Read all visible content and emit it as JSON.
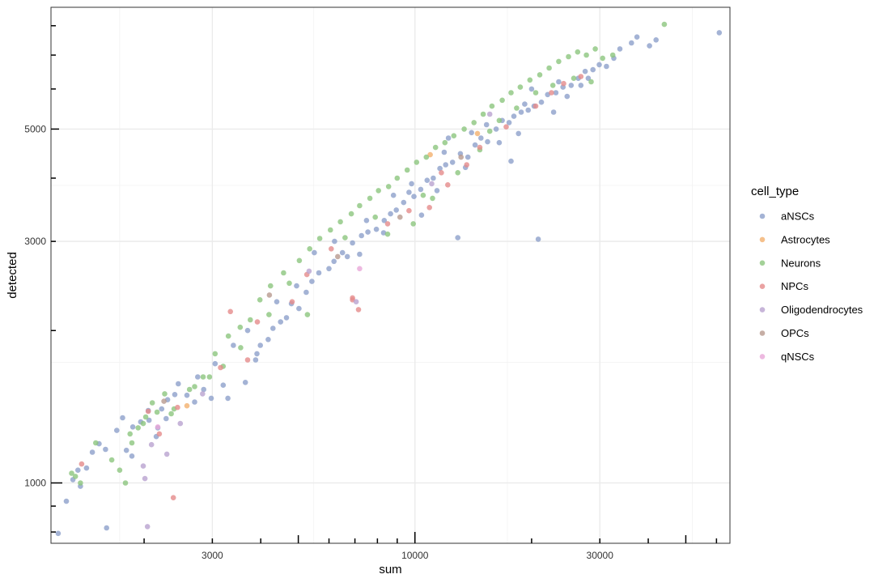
{
  "chart_data": {
    "type": "scatter",
    "xlabel": "sum",
    "ylabel": "detected",
    "x_scale": "log10",
    "y_scale": "log10",
    "xlim": [
      1150,
      65000
    ],
    "ylim": [
      760,
      8700
    ],
    "x_ticks": [
      {
        "value": 3000,
        "label": "3000"
      },
      {
        "value": 10000,
        "label": "10000"
      },
      {
        "value": 30000,
        "label": "30000"
      }
    ],
    "y_ticks": [
      {
        "value": 1000,
        "label": "1000"
      },
      {
        "value": 3000,
        "label": "3000"
      },
      {
        "value": 5000,
        "label": "5000"
      }
    ],
    "grid": true,
    "legend": {
      "title": "cell_type",
      "position": "right",
      "entries": [
        {
          "label": "aNSCs",
          "color": "#8DA0CB"
        },
        {
          "label": "Astrocytes",
          "color": "#F2B06E"
        },
        {
          "label": "Neurons",
          "color": "#8CC57E"
        },
        {
          "label": "NPCs",
          "color": "#E58B8B"
        },
        {
          "label": "Oligodendrocytes",
          "color": "#B9A2D0"
        },
        {
          "label": "OPCs",
          "color": "#B89A8E"
        },
        {
          "label": "qNSCs",
          "color": "#E8A8D8"
        }
      ]
    },
    "series": [
      {
        "name": "aNSCs",
        "points": [
          [
            1200,
            795
          ],
          [
            1260,
            920
          ],
          [
            1310,
            1015
          ],
          [
            1350,
            1060
          ],
          [
            1370,
            985
          ],
          [
            1420,
            1070
          ],
          [
            1470,
            1150
          ],
          [
            1530,
            1195
          ],
          [
            1590,
            1165
          ],
          [
            1600,
            815
          ],
          [
            1700,
            1270
          ],
          [
            1760,
            1345
          ],
          [
            1800,
            1160
          ],
          [
            1860,
            1130
          ],
          [
            1870,
            1290
          ],
          [
            1960,
            1320
          ],
          [
            2060,
            1330
          ],
          [
            2150,
            1235
          ],
          [
            2170,
            1285
          ],
          [
            2220,
            1400
          ],
          [
            2280,
            1340
          ],
          [
            2400,
            1495
          ],
          [
            2580,
            1490
          ],
          [
            2700,
            1445
          ],
          [
            2850,
            1530
          ],
          [
            2980,
            1470
          ],
          [
            3200,
            1560
          ],
          [
            3290,
            1470
          ],
          [
            3650,
            1580
          ],
          [
            3880,
            1750
          ],
          [
            3910,
            1800
          ],
          [
            3990,
            1870
          ],
          [
            4180,
            1920
          ],
          [
            4300,
            2020
          ],
          [
            4500,
            2080
          ],
          [
            4660,
            2120
          ],
          [
            4800,
            2260
          ],
          [
            5020,
            2210
          ],
          [
            5240,
            2380
          ],
          [
            5420,
            2500
          ],
          [
            5650,
            2600
          ],
          [
            6000,
            2650
          ],
          [
            6180,
            2740
          ],
          [
            6500,
            2850
          ],
          [
            6690,
            2800
          ],
          [
            6900,
            2980
          ],
          [
            7280,
            3080
          ],
          [
            7560,
            3130
          ],
          [
            7950,
            3170
          ],
          [
            8330,
            3300
          ],
          [
            8650,
            3400
          ],
          [
            8950,
            3460
          ],
          [
            9350,
            3580
          ],
          [
            9650,
            3750
          ],
          [
            9940,
            3680
          ],
          [
            10350,
            3800
          ],
          [
            10750,
            3960
          ],
          [
            11150,
            4000
          ],
          [
            11600,
            4180
          ],
          [
            12000,
            4250
          ],
          [
            12500,
            4300
          ],
          [
            13100,
            4470
          ],
          [
            13700,
            4400
          ],
          [
            14300,
            4650
          ],
          [
            14800,
            4800
          ],
          [
            15400,
            4720
          ],
          [
            16200,
            5000
          ],
          [
            16800,
            5200
          ],
          [
            17500,
            5150
          ],
          [
            18000,
            5300
          ],
          [
            18800,
            5400
          ],
          [
            19600,
            5450
          ],
          [
            20300,
            5550
          ],
          [
            21200,
            5650
          ],
          [
            22000,
            5850
          ],
          [
            23100,
            5900
          ],
          [
            24100,
            6050
          ],
          [
            25300,
            6100
          ],
          [
            26400,
            6300
          ],
          [
            27500,
            6500
          ],
          [
            28800,
            6550
          ],
          [
            29900,
            6700
          ],
          [
            31200,
            6650
          ],
          [
            32600,
            6900
          ],
          [
            33800,
            7200
          ],
          [
            36200,
            7400
          ],
          [
            37400,
            7600
          ],
          [
            40300,
            7300
          ],
          [
            41900,
            7500
          ],
          [
            61000,
            7750
          ],
          [
            12900,
            3050
          ],
          [
            20800,
            3030
          ],
          [
            17700,
            4320
          ],
          [
            11400,
            3780
          ],
          [
            10400,
            3380
          ],
          [
            8300,
            3120
          ],
          [
            7200,
            2830
          ],
          [
            15300,
            5100
          ],
          [
            14000,
            4920
          ],
          [
            20000,
            6000
          ],
          [
            23500,
            6200
          ],
          [
            26800,
            6100
          ],
          [
            18500,
            4900
          ],
          [
            22800,
            5400
          ],
          [
            9800,
            3900
          ],
          [
            11900,
            4500
          ],
          [
            13500,
            4200
          ],
          [
            16500,
            4700
          ],
          [
            19200,
            5600
          ],
          [
            24700,
            5800
          ],
          [
            28000,
            6300
          ],
          [
            12200,
            4800
          ],
          [
            8800,
            3700
          ],
          [
            7500,
            3300
          ],
          [
            6200,
            3000
          ],
          [
            5500,
            2850
          ],
          [
            4950,
            2450
          ],
          [
            4400,
            2280
          ],
          [
            3700,
            2000
          ],
          [
            3400,
            1870
          ],
          [
            3050,
            1720
          ],
          [
            2750,
            1620
          ],
          [
            2450,
            1570
          ],
          [
            2300,
            1460
          ],
          [
            2050,
            1390
          ]
        ]
      },
      {
        "name": "Astrocytes",
        "points": [
          [
            2580,
            1420
          ],
          [
            10950,
            4450
          ],
          [
            14500,
            4900
          ]
        ]
      },
      {
        "name": "Neurons",
        "points": [
          [
            1300,
            1045
          ],
          [
            1330,
            1030
          ],
          [
            1370,
            1000
          ],
          [
            1500,
            1200
          ],
          [
            1650,
            1110
          ],
          [
            1730,
            1060
          ],
          [
            1790,
            1000
          ],
          [
            1840,
            1250
          ],
          [
            1930,
            1285
          ],
          [
            2020,
            1350
          ],
          [
            2100,
            1440
          ],
          [
            2160,
            1380
          ],
          [
            2260,
            1500
          ],
          [
            2390,
            1400
          ],
          [
            2620,
            1530
          ],
          [
            2840,
            1620
          ],
          [
            3050,
            1800
          ],
          [
            3300,
            1950
          ],
          [
            3540,
            2030
          ],
          [
            3760,
            2100
          ],
          [
            3980,
            2300
          ],
          [
            4240,
            2450
          ],
          [
            4580,
            2600
          ],
          [
            4740,
            2480
          ],
          [
            5030,
            2750
          ],
          [
            5350,
            2900
          ],
          [
            5680,
            3040
          ],
          [
            6050,
            3160
          ],
          [
            6420,
            3280
          ],
          [
            6850,
            3400
          ],
          [
            7200,
            3530
          ],
          [
            7650,
            3650
          ],
          [
            8050,
            3780
          ],
          [
            8550,
            3850
          ],
          [
            9000,
            4000
          ],
          [
            9550,
            4150
          ],
          [
            10100,
            4300
          ],
          [
            10700,
            4400
          ],
          [
            11300,
            4600
          ],
          [
            11950,
            4700
          ],
          [
            12600,
            4850
          ],
          [
            13400,
            5000
          ],
          [
            14200,
            5150
          ],
          [
            15000,
            5350
          ],
          [
            15800,
            5550
          ],
          [
            16800,
            5700
          ],
          [
            17700,
            5900
          ],
          [
            18700,
            6050
          ],
          [
            19800,
            6250
          ],
          [
            21000,
            6400
          ],
          [
            22200,
            6600
          ],
          [
            23500,
            6800
          ],
          [
            24900,
            6950
          ],
          [
            26300,
            7100
          ],
          [
            27700,
            7000
          ],
          [
            29200,
            7200
          ],
          [
            30500,
            6900
          ],
          [
            32400,
            7000
          ],
          [
            44000,
            8050
          ],
          [
            5280,
            2150
          ],
          [
            8500,
            3100
          ],
          [
            9900,
            3250
          ],
          [
            11100,
            3650
          ],
          [
            12900,
            4100
          ],
          [
            14700,
            4550
          ],
          [
            16500,
            5200
          ],
          [
            18300,
            5500
          ],
          [
            20500,
            5900
          ],
          [
            22700,
            6100
          ],
          [
            25700,
            6300
          ],
          [
            28500,
            6200
          ],
          [
            4200,
            2150
          ],
          [
            3550,
            1850
          ],
          [
            3200,
            1700
          ],
          [
            2950,
            1620
          ],
          [
            2700,
            1550
          ],
          [
            2350,
            1370
          ],
          [
            1990,
            1310
          ],
          [
            1860,
            1200
          ],
          [
            7900,
            3350
          ],
          [
            10500,
            3700
          ],
          [
            6600,
            3050
          ],
          [
            15600,
            4950
          ]
        ]
      },
      {
        "name": "NPCs",
        "points": [
          [
            1380,
            1090
          ],
          [
            2050,
            1385
          ],
          [
            2440,
            1410
          ],
          [
            3150,
            1690
          ],
          [
            3700,
            1750
          ],
          [
            3920,
            2080
          ],
          [
            4820,
            2280
          ],
          [
            5260,
            2580
          ],
          [
            6080,
            2900
          ],
          [
            6900,
            2300
          ],
          [
            7150,
            2200
          ],
          [
            8500,
            3250
          ],
          [
            9650,
            3450
          ],
          [
            10900,
            3500
          ],
          [
            12150,
            3880
          ],
          [
            13600,
            4250
          ],
          [
            14700,
            4600
          ],
          [
            17200,
            5050
          ],
          [
            20500,
            5550
          ],
          [
            22500,
            5900
          ],
          [
            24200,
            6150
          ],
          [
            26800,
            6350
          ],
          [
            2190,
            1250
          ],
          [
            2380,
            935
          ],
          [
            3340,
            2180
          ],
          [
            6900,
            2320
          ],
          [
            11700,
            4100
          ]
        ]
      },
      {
        "name": "Oligodendrocytes",
        "points": [
          [
            1990,
            1080
          ],
          [
            2040,
            820
          ],
          [
            2090,
            1190
          ],
          [
            2290,
            1140
          ],
          [
            2480,
            1310
          ],
          [
            2830,
            1500
          ],
          [
            5330,
            2620
          ],
          [
            7050,
            2280
          ],
          [
            11050,
            3900
          ],
          [
            15600,
            5350
          ],
          [
            2010,
            1020
          ]
        ]
      },
      {
        "name": "OPCs",
        "points": [
          [
            2250,
            1450
          ],
          [
            4210,
            2350
          ],
          [
            6320,
            2800
          ],
          [
            9150,
            3350
          ],
          [
            13150,
            4400
          ]
        ]
      },
      {
        "name": "qNSCs",
        "points": [
          [
            2170,
            1290
          ],
          [
            7200,
            2650
          ]
        ]
      }
    ]
  }
}
